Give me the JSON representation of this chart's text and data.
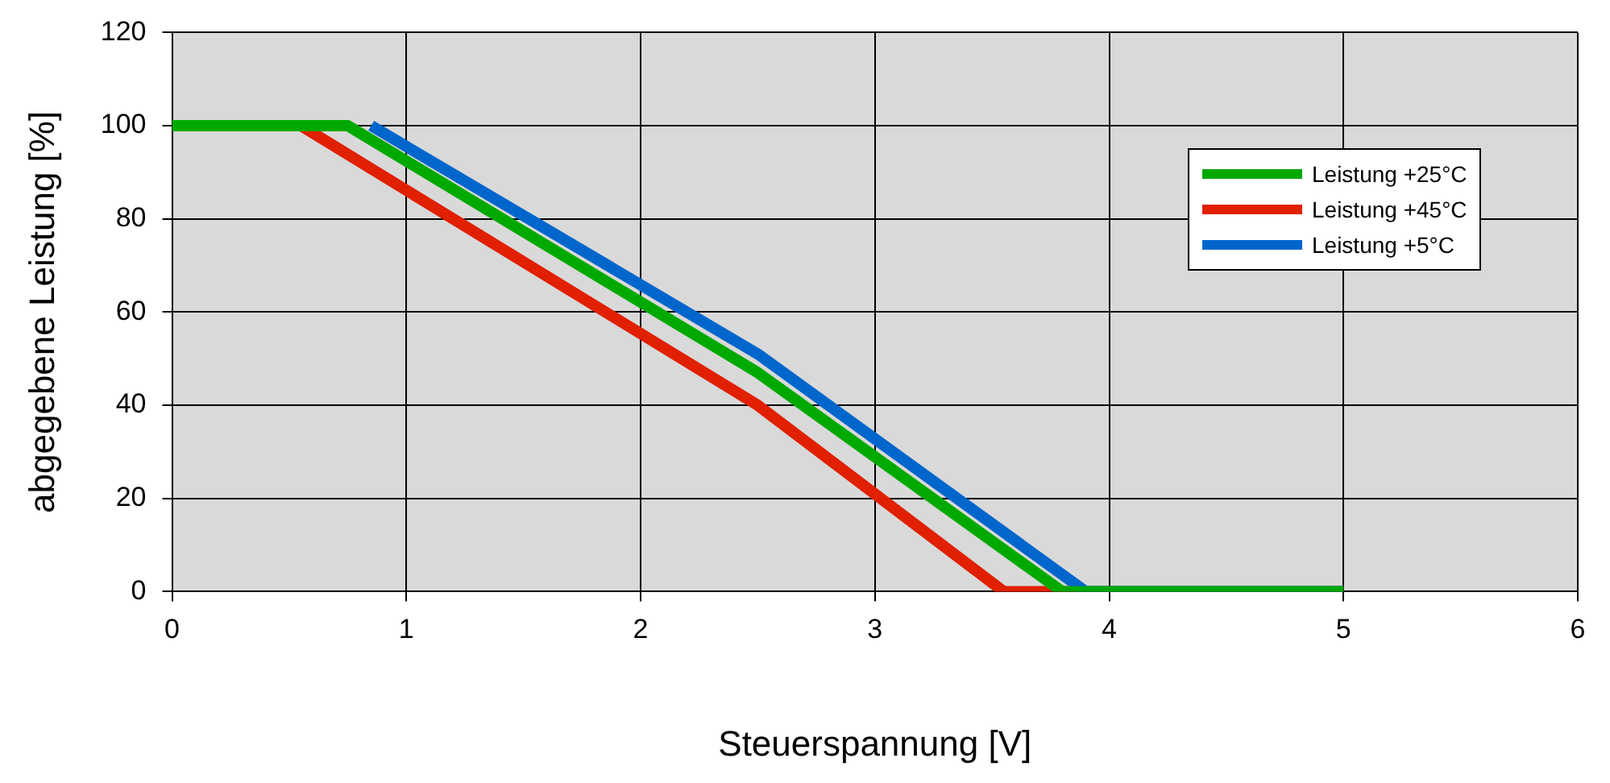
{
  "chart_data": {
    "type": "line",
    "xlabel": "Steuerspannung [V]",
    "ylabel": "abgegebene Leistung [%]",
    "xlim": [
      0,
      6
    ],
    "xticks": [
      0,
      1,
      2,
      3,
      4,
      5,
      6
    ],
    "ylim": [
      0,
      120
    ],
    "yticks": [
      0,
      20,
      40,
      60,
      80,
      100,
      120
    ],
    "grid": true,
    "legend": "top right",
    "marker": "none",
    "line_style": "solid",
    "series": [
      {
        "name": "Leistung +25°C",
        "color": "#00a900",
        "x": [
          0,
          0.75,
          2.5,
          3.8,
          5
        ],
        "values": [
          100,
          100,
          47,
          0,
          0
        ]
      },
      {
        "name": "Leistung +45°C",
        "color": "#e02000",
        "x": [
          0.55,
          2.5,
          3.55,
          5
        ],
        "values": [
          100,
          40,
          0,
          0
        ]
      },
      {
        "name": "Leistung +5°C",
        "color": "#0066cc",
        "x": [
          0.85,
          2.5,
          3.9,
          5
        ],
        "values": [
          100,
          51,
          0,
          0
        ]
      }
    ]
  }
}
